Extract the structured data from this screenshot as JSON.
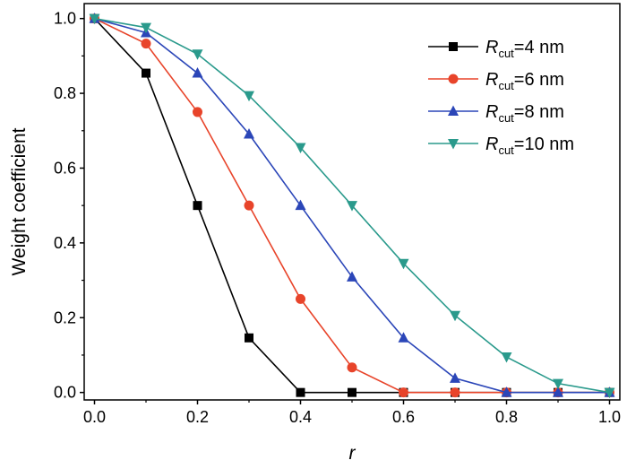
{
  "chart_data": {
    "type": "line",
    "title": "",
    "xlabel": "r",
    "ylabel": "Weight coefficient",
    "xlim": [
      -0.02,
      1.02
    ],
    "ylim": [
      -0.02,
      1.04
    ],
    "xticks": [
      "0.0",
      "0.2",
      "0.4",
      "0.6",
      "0.8",
      "1.0"
    ],
    "yticks": [
      "0.0",
      "0.2",
      "0.4",
      "0.6",
      "0.8",
      "1.0"
    ],
    "grid": false,
    "legend_position": "top-right",
    "x": [
      0.0,
      0.1,
      0.2,
      0.3,
      0.4,
      0.5,
      0.6,
      0.7,
      0.8,
      0.9,
      1.0
    ],
    "series": [
      {
        "name": "R_cut=4 nm",
        "label_main": "R",
        "label_sub": "cut",
        "label_rest": "=4 nm",
        "color": "#000000",
        "marker": "square",
        "values": [
          1.0,
          0.854,
          0.5,
          0.146,
          0.0,
          0.0,
          0.0,
          0.0,
          0.0,
          0.0,
          0.0
        ]
      },
      {
        "name": "R_cut=6 nm",
        "label_main": "R",
        "label_sub": "cut",
        "label_rest": "=6 nm",
        "color": "#e8442a",
        "marker": "circle",
        "values": [
          1.0,
          0.933,
          0.75,
          0.5,
          0.25,
          0.067,
          0.0,
          0.0,
          0.0,
          0.0,
          0.0
        ]
      },
      {
        "name": "R_cut=8 nm",
        "label_main": "R",
        "label_sub": "cut",
        "label_rest": "=8 nm",
        "color": "#2b46b8",
        "marker": "triangle-up",
        "values": [
          1.0,
          0.962,
          0.854,
          0.691,
          0.5,
          0.309,
          0.146,
          0.038,
          0.0,
          0.0,
          0.0
        ]
      },
      {
        "name": "R_cut=10 nm",
        "label_main": "R",
        "label_sub": "cut",
        "label_rest": "=10 nm",
        "color": "#2a9a8c",
        "marker": "triangle-down",
        "values": [
          1.0,
          0.976,
          0.905,
          0.794,
          0.655,
          0.5,
          0.345,
          0.206,
          0.095,
          0.024,
          0.0
        ]
      }
    ]
  }
}
